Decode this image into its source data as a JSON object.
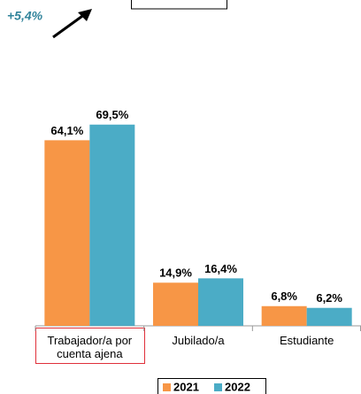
{
  "chart_data": {
    "type": "bar",
    "annotation": "+5,4%",
    "categories": [
      "Trabajador/a por cuenta ajena",
      "Jubilado/a",
      "Estudiante"
    ],
    "series": [
      {
        "name": "2021",
        "color": "#f79646",
        "values": [
          64.1,
          14.9,
          6.8
        ],
        "value_labels": [
          "64,1%",
          "14,9%",
          "6,8%"
        ]
      },
      {
        "name": "2022",
        "color": "#4bacc6",
        "values": [
          69.5,
          16.4,
          6.2
        ],
        "value_labels": [
          "69,5%",
          "16,4%",
          "6,2%"
        ]
      }
    ],
    "legend": "bottom"
  }
}
